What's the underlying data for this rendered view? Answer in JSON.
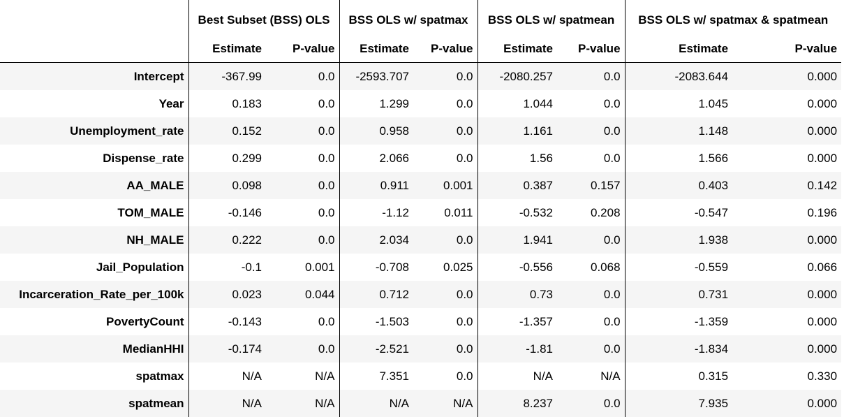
{
  "table": {
    "groups": [
      {
        "label": "Best Subset (BSS) OLS"
      },
      {
        "label": "BSS OLS w/ spatmax"
      },
      {
        "label": "BSS OLS w/ spatmean"
      },
      {
        "label": "BSS OLS w/ spatmax & spatmean"
      }
    ],
    "subheaders": [
      "Estimate",
      "P-value",
      "Estimate",
      "P-value",
      "Estimate",
      "P-value",
      "Estimate",
      "P-value"
    ],
    "rows": [
      {
        "label": "Intercept",
        "values": [
          "-367.99",
          "0.0",
          "-2593.707",
          "0.0",
          "-2080.257",
          "0.0",
          "-2083.644",
          "0.000"
        ]
      },
      {
        "label": "Year",
        "values": [
          "0.183",
          "0.0",
          "1.299",
          "0.0",
          "1.044",
          "0.0",
          "1.045",
          "0.000"
        ]
      },
      {
        "label": "Unemployment_rate",
        "values": [
          "0.152",
          "0.0",
          "0.958",
          "0.0",
          "1.161",
          "0.0",
          "1.148",
          "0.000"
        ]
      },
      {
        "label": "Dispense_rate",
        "values": [
          "0.299",
          "0.0",
          "2.066",
          "0.0",
          "1.56",
          "0.0",
          "1.566",
          "0.000"
        ]
      },
      {
        "label": "AA_MALE",
        "values": [
          "0.098",
          "0.0",
          "0.911",
          "0.001",
          "0.387",
          "0.157",
          "0.403",
          "0.142"
        ]
      },
      {
        "label": "TOM_MALE",
        "values": [
          "-0.146",
          "0.0",
          "-1.12",
          "0.011",
          "-0.532",
          "0.208",
          "-0.547",
          "0.196"
        ]
      },
      {
        "label": "NH_MALE",
        "values": [
          "0.222",
          "0.0",
          "2.034",
          "0.0",
          "1.941",
          "0.0",
          "1.938",
          "0.000"
        ]
      },
      {
        "label": "Jail_Population",
        "values": [
          "-0.1",
          "0.001",
          "-0.708",
          "0.025",
          "-0.556",
          "0.068",
          "-0.559",
          "0.066"
        ]
      },
      {
        "label": "Incarceration_Rate_per_100k",
        "values": [
          "0.023",
          "0.044",
          "0.712",
          "0.0",
          "0.73",
          "0.0",
          "0.731",
          "0.000"
        ]
      },
      {
        "label": "PovertyCount",
        "values": [
          "-0.143",
          "0.0",
          "-1.503",
          "0.0",
          "-1.357",
          "0.0",
          "-1.359",
          "0.000"
        ]
      },
      {
        "label": "MedianHHI",
        "values": [
          "-0.174",
          "0.0",
          "-2.521",
          "0.0",
          "-1.81",
          "0.0",
          "-1.834",
          "0.000"
        ]
      },
      {
        "label": "spatmax",
        "values": [
          "N/A",
          "N/A",
          "7.351",
          "0.0",
          "N/A",
          "N/A",
          "0.315",
          "0.330"
        ]
      },
      {
        "label": "spatmean",
        "values": [
          "N/A",
          "N/A",
          "N/A",
          "N/A",
          "8.237",
          "0.0",
          "7.935",
          "0.000"
        ]
      }
    ]
  }
}
